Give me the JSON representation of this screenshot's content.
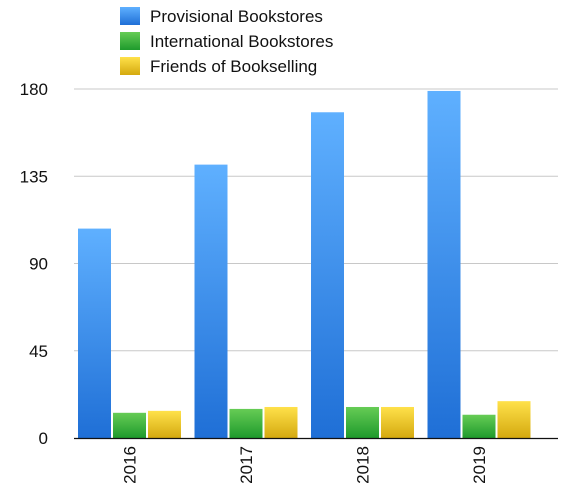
{
  "chart_data": {
    "type": "bar",
    "categories": [
      "2016",
      "2017",
      "2018",
      "2019"
    ],
    "series": [
      {
        "name": "Provisional Bookstores",
        "values": [
          108,
          141,
          168,
          179
        ],
        "color_top": "#5fb0ff",
        "color_bottom": "#1f6fd6"
      },
      {
        "name": "International Bookstores",
        "values": [
          13,
          15,
          16,
          12
        ],
        "color_top": "#66cc55",
        "color_bottom": "#1e9a2c"
      },
      {
        "name": "Friends of Bookselling",
        "values": [
          14,
          16,
          16,
          19
        ],
        "color_top": "#ffe14a",
        "color_bottom": "#d4a90f"
      }
    ],
    "yticks": [
      0,
      45,
      90,
      135,
      180
    ],
    "ylim": [
      0,
      180
    ],
    "grid": true,
    "legend_position": "top",
    "xlabel": "",
    "ylabel": "",
    "title": ""
  }
}
